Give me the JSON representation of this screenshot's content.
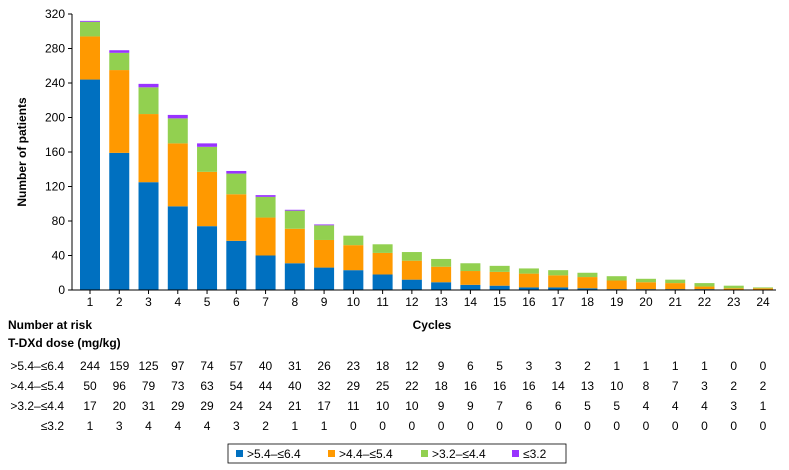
{
  "chart_data": {
    "type": "bar",
    "stacked": true,
    "xlabel": "Cycles",
    "ylabel": "Number of patients",
    "ylim": [
      0,
      320
    ],
    "yticks": [
      0,
      40,
      80,
      120,
      160,
      200,
      240,
      280,
      320
    ],
    "grid": false,
    "legend_position": "bottom",
    "categories": [
      "1",
      "2",
      "3",
      "4",
      "5",
      "6",
      "7",
      "8",
      "9",
      "10",
      "11",
      "12",
      "13",
      "14",
      "15",
      "16",
      "17",
      "18",
      "19",
      "20",
      "21",
      "22",
      "23",
      "24"
    ],
    "series": [
      {
        "name": ">5.4–≤6.4",
        "color": "#0070c0",
        "values": [
          244,
          159,
          125,
          97,
          74,
          57,
          40,
          31,
          26,
          23,
          18,
          12,
          9,
          6,
          5,
          3,
          3,
          2,
          1,
          1,
          1,
          1,
          0,
          0
        ]
      },
      {
        "name": ">4.4–≤5.4",
        "color": "#ff9900",
        "values": [
          50,
          96,
          79,
          73,
          63,
          54,
          44,
          40,
          32,
          29,
          25,
          22,
          18,
          16,
          16,
          16,
          14,
          13,
          10,
          8,
          7,
          3,
          2,
          2
        ]
      },
      {
        "name": ">3.2–≤4.4",
        "color": "#92d050",
        "values": [
          17,
          20,
          31,
          29,
          29,
          24,
          24,
          21,
          17,
          11,
          10,
          10,
          9,
          9,
          7,
          6,
          6,
          5,
          5,
          4,
          4,
          4,
          3,
          1
        ]
      },
      {
        "name": "≤3.2",
        "color": "#9933ff",
        "values": [
          1,
          3,
          4,
          4,
          4,
          3,
          2,
          1,
          1,
          0,
          0,
          0,
          0,
          0,
          0,
          0,
          0,
          0,
          0,
          0,
          0,
          0,
          0,
          0
        ]
      }
    ],
    "risk_table": {
      "title": "Number at risk",
      "subtitle": "T-DXd dose (mg/kg)"
    }
  }
}
